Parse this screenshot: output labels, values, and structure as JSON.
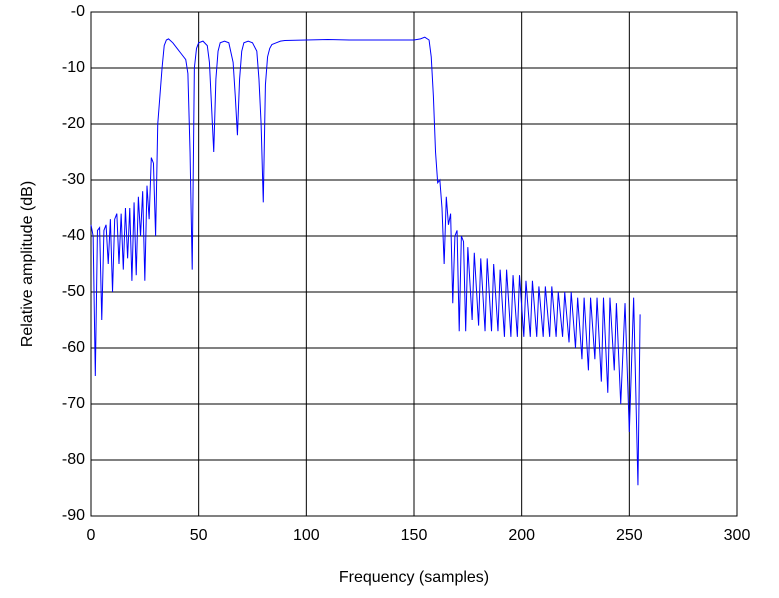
{
  "chart_data": {
    "type": "line",
    "xlabel": "Frequency (samples)",
    "ylabel": "Relative amplitude (dB)",
    "color": "#0000ff",
    "grid": true,
    "xlim": [
      0,
      300
    ],
    "xticks": [
      0,
      50,
      100,
      150,
      200,
      250,
      300
    ],
    "ylim": [
      -90,
      0
    ],
    "yticks": [
      {
        "value": 0,
        "label": "-0"
      },
      -10,
      -20,
      -30,
      -40,
      -50,
      -60,
      -70,
      -80,
      -90
    ],
    "x": [
      0,
      1,
      2,
      3,
      4,
      5,
      6,
      7,
      8,
      9,
      10,
      11,
      12,
      13,
      14,
      15,
      16,
      17,
      18,
      19,
      20,
      21,
      22,
      23,
      24,
      25,
      26,
      27,
      28,
      29,
      30,
      31,
      32,
      33,
      34,
      35,
      36,
      38,
      40,
      42,
      44,
      45,
      46,
      47,
      48,
      49,
      50,
      52,
      54,
      55,
      56,
      57,
      58,
      59,
      60,
      62,
      64,
      66,
      67,
      68,
      69,
      70,
      71,
      73,
      75,
      77,
      78,
      79,
      80,
      81,
      82,
      83,
      84,
      86,
      88,
      90,
      100,
      110,
      120,
      130,
      140,
      150,
      153,
      155,
      157,
      158,
      159,
      160,
      161,
      162,
      163,
      164,
      165,
      166,
      167,
      168,
      169,
      170,
      171,
      172,
      173,
      174,
      175,
      177,
      178,
      180,
      181,
      183,
      184,
      186,
      187,
      189,
      190,
      192,
      193,
      195,
      196,
      198,
      199,
      201,
      202,
      204,
      205,
      207,
      208,
      210,
      211,
      213,
      214,
      216,
      217,
      219,
      220,
      222,
      223,
      225,
      226,
      228,
      229,
      231,
      232,
      234,
      235,
      237,
      238,
      240,
      241,
      243,
      244,
      246,
      248,
      250,
      252,
      254,
      255
    ],
    "values": [
      -38,
      -40,
      -65,
      -39,
      -38.5,
      -55,
      -39,
      -38,
      -45,
      -37,
      -50,
      -37,
      -36,
      -45,
      -36,
      -46,
      -35,
      -44,
      -35,
      -48,
      -34,
      -47,
      -33,
      -40,
      -32,
      -48,
      -31,
      -37,
      -26,
      -27,
      -40,
      -20,
      -15,
      -10,
      -6,
      -5,
      -4.8,
      -5.5,
      -6.5,
      -7.5,
      -8.5,
      -11,
      -25,
      -46,
      -10,
      -6.5,
      -5.5,
      -5.2,
      -6,
      -9,
      -17,
      -25,
      -12,
      -7,
      -5.5,
      -5.2,
      -5.5,
      -9,
      -15,
      -22,
      -12,
      -7,
      -5.5,
      -5.2,
      -5.5,
      -7,
      -12,
      -20,
      -34,
      -13,
      -8,
      -6.5,
      -5.8,
      -5.5,
      -5.2,
      -5.1,
      -5,
      -4.9,
      -5,
      -5,
      -5,
      -5,
      -4.8,
      -4.5,
      -5,
      -8,
      -15,
      -25,
      -30.5,
      -30,
      -35,
      -45,
      -33,
      -38,
      -36,
      -52,
      -40,
      -39,
      -57,
      -40,
      -41,
      -57,
      -42,
      -55,
      -43,
      -56,
      -44,
      -57,
      -44,
      -57,
      -45,
      -57,
      -46,
      -58,
      -46,
      -58,
      -47,
      -58,
      -47,
      -58,
      -48,
      -58,
      -48,
      -58,
      -49,
      -58,
      -49,
      -58,
      -49,
      -58,
      -50,
      -58,
      -50,
      -59,
      -50,
      -60,
      -51,
      -62,
      -51,
      -64,
      -51,
      -62,
      -51,
      -66,
      -51,
      -68,
      -51,
      -64,
      -52,
      -70,
      -52,
      -75,
      -51,
      -84.5,
      -54
    ]
  }
}
